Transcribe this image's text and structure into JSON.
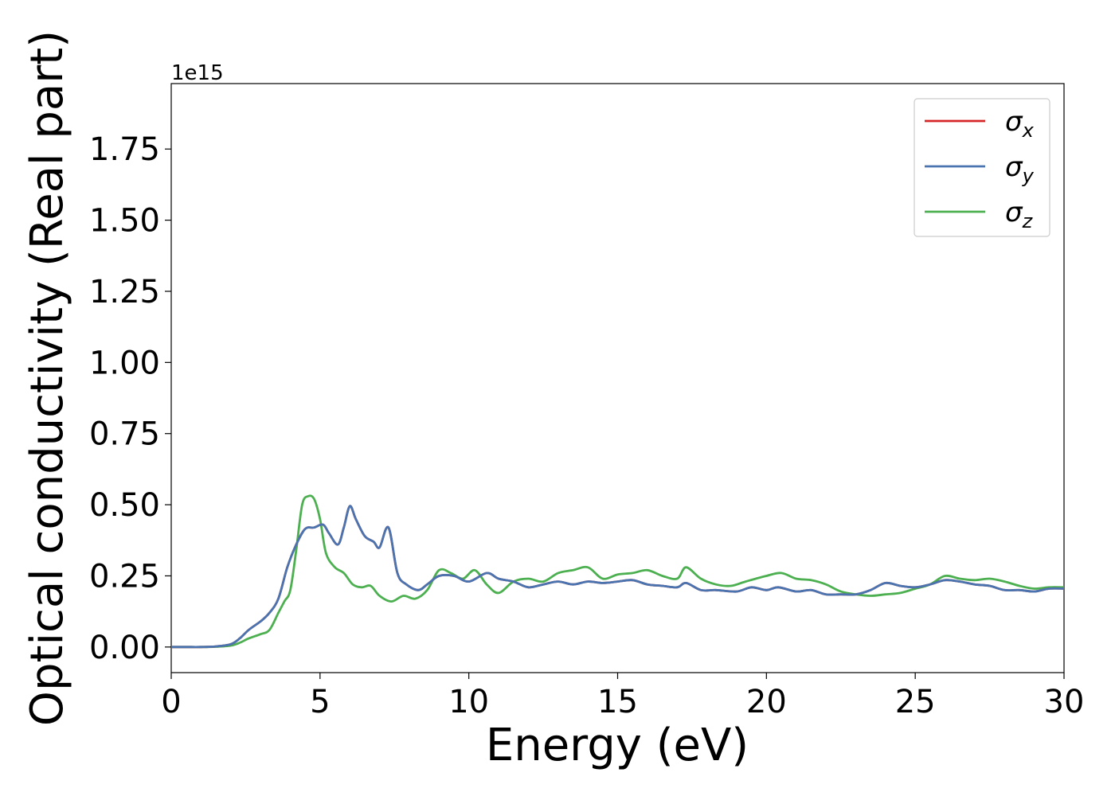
{
  "chart_data": {
    "type": "line",
    "xlabel": "Energy (eV)",
    "ylabel": "Optical conductivity (Real part)",
    "y_offset_text": "1e15",
    "xlim": [
      0,
      30
    ],
    "ylim": [
      -0.09,
      1.98
    ],
    "y_scale_note": "values in units of 1e15",
    "xticks": [
      0,
      5,
      10,
      15,
      20,
      25,
      30
    ],
    "xtick_labels": [
      "0",
      "5",
      "10",
      "15",
      "20",
      "25",
      "30"
    ],
    "yticks": [
      0.0,
      0.25,
      0.5,
      0.75,
      1.0,
      1.25,
      1.5,
      1.75
    ],
    "ytick_labels": [
      "0.00",
      "0.25",
      "0.50",
      "0.75",
      "1.00",
      "1.25",
      "1.50",
      "1.75"
    ],
    "grid": false,
    "legend_position": "top-right",
    "series": [
      {
        "name": "σx",
        "legend_symbol": "σ",
        "legend_subscript": "x",
        "color": "#d62728",
        "x": [
          0,
          0.5,
          1,
          1.5,
          2,
          2.3,
          2.6,
          3,
          3.3,
          3.6,
          3.9,
          4.2,
          4.5,
          4.8,
          5.1,
          5.3,
          5.6,
          5.8,
          6.0,
          6.2,
          6.5,
          6.8,
          7.0,
          7.3,
          7.6,
          7.9,
          8.3,
          8.6,
          9.0,
          9.5,
          10,
          10.6,
          11,
          11.5,
          12,
          12.5,
          13,
          13.5,
          14,
          14.5,
          15,
          15.5,
          16,
          16.5,
          17,
          17.3,
          17.8,
          18.3,
          19,
          19.5,
          20,
          20.4,
          21,
          21.5,
          22,
          22.5,
          23,
          23.5,
          24,
          24.5,
          25,
          25.5,
          26,
          26.5,
          27,
          27.5,
          28,
          28.5,
          29,
          29.5,
          30
        ],
        "values": [
          0.0,
          0.0,
          0.0,
          0.002,
          0.01,
          0.03,
          0.06,
          0.09,
          0.12,
          0.17,
          0.28,
          0.36,
          0.415,
          0.42,
          0.43,
          0.4,
          0.36,
          0.42,
          0.495,
          0.45,
          0.39,
          0.37,
          0.35,
          0.42,
          0.26,
          0.22,
          0.2,
          0.22,
          0.25,
          0.25,
          0.23,
          0.26,
          0.24,
          0.23,
          0.21,
          0.22,
          0.23,
          0.22,
          0.23,
          0.225,
          0.23,
          0.235,
          0.22,
          0.215,
          0.21,
          0.225,
          0.2,
          0.2,
          0.195,
          0.21,
          0.2,
          0.21,
          0.195,
          0.2,
          0.185,
          0.185,
          0.185,
          0.2,
          0.225,
          0.215,
          0.21,
          0.22,
          0.235,
          0.23,
          0.22,
          0.215,
          0.2,
          0.2,
          0.195,
          0.205,
          0.205
        ]
      },
      {
        "name": "σy",
        "legend_symbol": "σ",
        "legend_subscript": "y",
        "color": "#4a74b0",
        "x": [
          0,
          0.5,
          1,
          1.5,
          2,
          2.3,
          2.6,
          3,
          3.3,
          3.6,
          3.9,
          4.2,
          4.5,
          4.8,
          5.1,
          5.3,
          5.6,
          5.8,
          6.0,
          6.2,
          6.5,
          6.8,
          7.0,
          7.3,
          7.6,
          7.9,
          8.3,
          8.6,
          9.0,
          9.5,
          10,
          10.6,
          11,
          11.5,
          12,
          12.5,
          13,
          13.5,
          14,
          14.5,
          15,
          15.5,
          16,
          16.5,
          17,
          17.3,
          17.8,
          18.3,
          19,
          19.5,
          20,
          20.4,
          21,
          21.5,
          22,
          22.5,
          23,
          23.5,
          24,
          24.5,
          25,
          25.5,
          26,
          26.5,
          27,
          27.5,
          28,
          28.5,
          29,
          29.5,
          30
        ],
        "values": [
          0.0,
          0.0,
          0.0,
          0.002,
          0.01,
          0.03,
          0.06,
          0.09,
          0.12,
          0.17,
          0.28,
          0.36,
          0.415,
          0.42,
          0.43,
          0.4,
          0.36,
          0.42,
          0.495,
          0.45,
          0.39,
          0.37,
          0.35,
          0.42,
          0.26,
          0.22,
          0.2,
          0.22,
          0.25,
          0.25,
          0.23,
          0.26,
          0.24,
          0.23,
          0.21,
          0.22,
          0.23,
          0.22,
          0.23,
          0.225,
          0.23,
          0.235,
          0.22,
          0.215,
          0.21,
          0.225,
          0.2,
          0.2,
          0.195,
          0.21,
          0.2,
          0.21,
          0.195,
          0.2,
          0.185,
          0.185,
          0.185,
          0.2,
          0.225,
          0.215,
          0.21,
          0.22,
          0.235,
          0.23,
          0.22,
          0.215,
          0.2,
          0.2,
          0.195,
          0.205,
          0.205
        ]
      },
      {
        "name": "σz",
        "legend_symbol": "σ",
        "legend_subscript": "z",
        "color": "#4caf50",
        "x": [
          0,
          0.5,
          1,
          1.5,
          2,
          2.3,
          2.6,
          3,
          3.3,
          3.6,
          3.8,
          4.0,
          4.2,
          4.4,
          4.6,
          4.8,
          5.0,
          5.2,
          5.5,
          5.8,
          6.1,
          6.4,
          6.7,
          7.0,
          7.4,
          7.8,
          8.2,
          8.6,
          9.0,
          9.4,
          9.8,
          10.2,
          10.6,
          11.0,
          11.5,
          12,
          12.5,
          13,
          13.5,
          14,
          14.5,
          15,
          15.5,
          16,
          16.5,
          17,
          17.3,
          17.8,
          18.3,
          18.8,
          19.3,
          20,
          20.5,
          21,
          21.5,
          22,
          22.5,
          23,
          23.5,
          24,
          24.5,
          25,
          25.5,
          26,
          26.5,
          27,
          27.5,
          28,
          28.5,
          29,
          29.5,
          30
        ],
        "values": [
          0.0,
          0.0,
          0.0,
          0.001,
          0.005,
          0.015,
          0.03,
          0.045,
          0.06,
          0.12,
          0.16,
          0.2,
          0.34,
          0.5,
          0.53,
          0.52,
          0.45,
          0.33,
          0.28,
          0.26,
          0.22,
          0.21,
          0.215,
          0.18,
          0.16,
          0.18,
          0.17,
          0.2,
          0.27,
          0.26,
          0.24,
          0.27,
          0.22,
          0.19,
          0.23,
          0.24,
          0.23,
          0.26,
          0.27,
          0.28,
          0.24,
          0.255,
          0.26,
          0.27,
          0.25,
          0.24,
          0.28,
          0.24,
          0.22,
          0.215,
          0.23,
          0.25,
          0.26,
          0.24,
          0.235,
          0.22,
          0.195,
          0.185,
          0.18,
          0.185,
          0.19,
          0.205,
          0.22,
          0.25,
          0.24,
          0.235,
          0.24,
          0.23,
          0.215,
          0.205,
          0.21,
          0.21
        ]
      }
    ]
  }
}
